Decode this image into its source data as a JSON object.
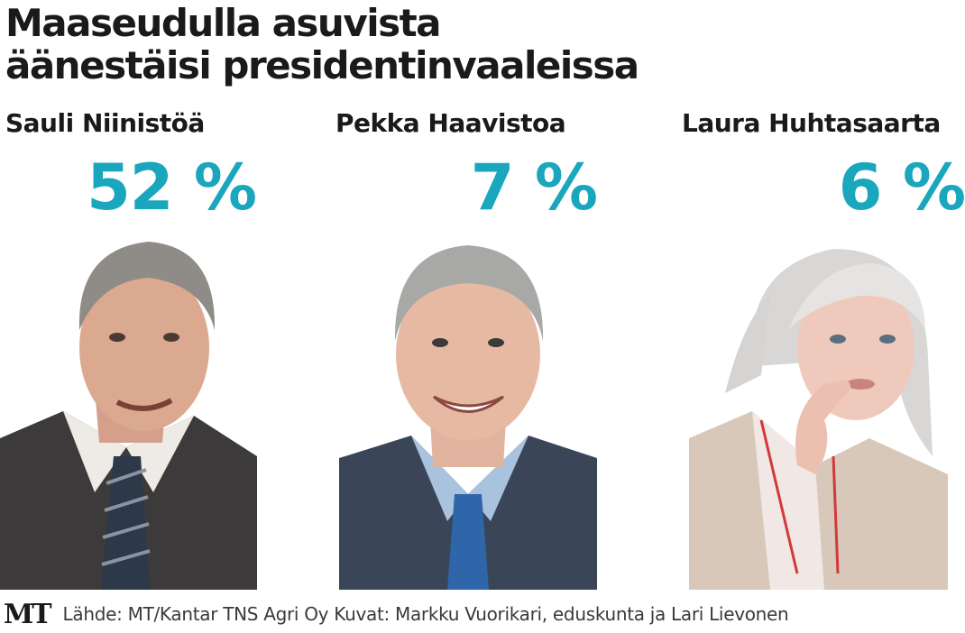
{
  "colors": {
    "accent": "#1aa6bd",
    "text": "#1a1a1a"
  },
  "title_lines": [
    "Maaseudulla asuvista",
    "äänestäisi presidentinvaaleissa"
  ],
  "chart_data": {
    "type": "bar",
    "title": "Maaseudulla asuvista äänestäisi presidentinvaaleissa",
    "categories": [
      "Sauli Niinistöä",
      "Pekka Haavistoa",
      "Laura Huhtasaarta"
    ],
    "values": [
      52,
      7,
      6
    ],
    "value_labels": [
      "52 %",
      "7 %",
      "6 %"
    ],
    "unit": "%"
  },
  "footer": {
    "logo": "MT",
    "source": "Lähde: MT/Kantar TNS Agri Oy  Kuvat: Markku Vuorikari, eduskunta ja Lari Lievonen"
  }
}
